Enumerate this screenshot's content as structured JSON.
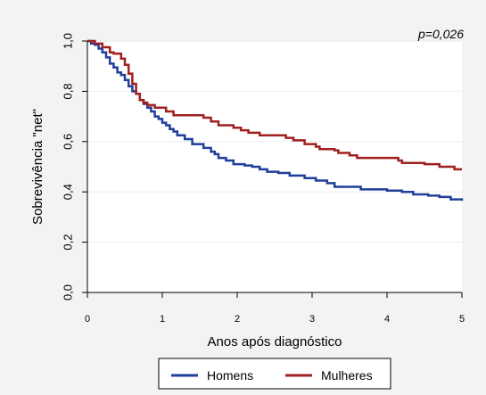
{
  "chart_data": {
    "type": "line",
    "title": "",
    "xlabel": "Anos após diagnóstico",
    "ylabel": "Sobrevivência \"net\"",
    "xlim": [
      0,
      5
    ],
    "ylim": [
      0,
      1
    ],
    "x_ticks": [
      "0",
      "1",
      "2",
      "3",
      "4",
      "5"
    ],
    "y_ticks": [
      "0,0",
      "0,2",
      "0,4",
      "0,6",
      "0,8",
      "1,0"
    ],
    "annotation": "p=0,026",
    "grid": true,
    "legend_position": "bottom",
    "series": [
      {
        "name": "Homens",
        "color": "#1f3f9a",
        "step": true,
        "points": [
          [
            0,
            1.0
          ],
          [
            0.05,
            0.99
          ],
          [
            0.1,
            0.985
          ],
          [
            0.15,
            0.97
          ],
          [
            0.2,
            0.955
          ],
          [
            0.25,
            0.935
          ],
          [
            0.3,
            0.91
          ],
          [
            0.35,
            0.895
          ],
          [
            0.4,
            0.875
          ],
          [
            0.45,
            0.865
          ],
          [
            0.5,
            0.845
          ],
          [
            0.55,
            0.82
          ],
          [
            0.6,
            0.8
          ],
          [
            0.65,
            0.79
          ],
          [
            0.7,
            0.765
          ],
          [
            0.75,
            0.75
          ],
          [
            0.8,
            0.735
          ],
          [
            0.85,
            0.72
          ],
          [
            0.9,
            0.7
          ],
          [
            0.95,
            0.69
          ],
          [
            1.0,
            0.675
          ],
          [
            1.05,
            0.665
          ],
          [
            1.1,
            0.65
          ],
          [
            1.15,
            0.64
          ],
          [
            1.2,
            0.625
          ],
          [
            1.3,
            0.61
          ],
          [
            1.4,
            0.59
          ],
          [
            1.55,
            0.575
          ],
          [
            1.65,
            0.56
          ],
          [
            1.7,
            0.55
          ],
          [
            1.75,
            0.535
          ],
          [
            1.85,
            0.525
          ],
          [
            1.95,
            0.51
          ],
          [
            2.1,
            0.505
          ],
          [
            2.2,
            0.5
          ],
          [
            2.3,
            0.49
          ],
          [
            2.4,
            0.48
          ],
          [
            2.55,
            0.475
          ],
          [
            2.7,
            0.465
          ],
          [
            2.9,
            0.455
          ],
          [
            3.05,
            0.445
          ],
          [
            3.2,
            0.435
          ],
          [
            3.3,
            0.42
          ],
          [
            3.6,
            0.42
          ],
          [
            3.65,
            0.41
          ],
          [
            4.0,
            0.405
          ],
          [
            4.2,
            0.4
          ],
          [
            4.35,
            0.39
          ],
          [
            4.55,
            0.385
          ],
          [
            4.7,
            0.38
          ],
          [
            4.85,
            0.37
          ],
          [
            5.0,
            0.365
          ]
        ]
      },
      {
        "name": "Mulheres",
        "color": "#a02020",
        "step": true,
        "points": [
          [
            0,
            1.0
          ],
          [
            0.1,
            0.99
          ],
          [
            0.2,
            0.975
          ],
          [
            0.3,
            0.955
          ],
          [
            0.35,
            0.95
          ],
          [
            0.45,
            0.93
          ],
          [
            0.5,
            0.905
          ],
          [
            0.55,
            0.87
          ],
          [
            0.6,
            0.83
          ],
          [
            0.65,
            0.79
          ],
          [
            0.7,
            0.765
          ],
          [
            0.75,
            0.755
          ],
          [
            0.8,
            0.745
          ],
          [
            0.9,
            0.735
          ],
          [
            1.05,
            0.72
          ],
          [
            1.15,
            0.705
          ],
          [
            1.55,
            0.695
          ],
          [
            1.65,
            0.68
          ],
          [
            1.75,
            0.665
          ],
          [
            1.95,
            0.655
          ],
          [
            2.05,
            0.645
          ],
          [
            2.15,
            0.635
          ],
          [
            2.3,
            0.625
          ],
          [
            2.65,
            0.615
          ],
          [
            2.75,
            0.605
          ],
          [
            2.9,
            0.59
          ],
          [
            3.05,
            0.58
          ],
          [
            3.1,
            0.57
          ],
          [
            3.3,
            0.565
          ],
          [
            3.35,
            0.555
          ],
          [
            3.5,
            0.545
          ],
          [
            3.6,
            0.535
          ],
          [
            4.15,
            0.525
          ],
          [
            4.2,
            0.515
          ],
          [
            4.5,
            0.51
          ],
          [
            4.7,
            0.5
          ],
          [
            4.9,
            0.49
          ],
          [
            5.0,
            0.49
          ]
        ]
      }
    ]
  }
}
